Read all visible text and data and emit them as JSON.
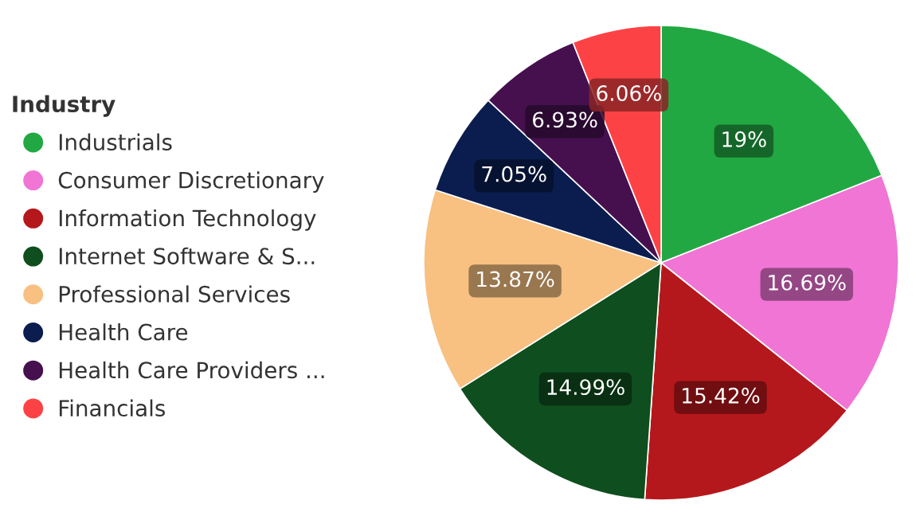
{
  "chart_data": {
    "type": "pie",
    "legend_title": "Industry",
    "legend": "left",
    "categories": [
      "Industrials",
      "Consumer Discretionary",
      "Information Technology",
      "Internet Software & S...",
      "Professional Services",
      "Health Care",
      "Health Care Providers ...",
      "Financials"
    ],
    "values": [
      19,
      16.69,
      15.42,
      14.99,
      13.87,
      7.05,
      6.93,
      6.06
    ],
    "value_labels": [
      "19%",
      "16.69%",
      "15.42%",
      "14.99%",
      "13.87%",
      "7.05%",
      "6.93%",
      "6.06%"
    ],
    "colors": [
      "#22a843",
      "#f075d4",
      "#b5181c",
      "#0f4e1e",
      "#f8c081",
      "#0b1d4f",
      "#46104f",
      "#fd4245"
    ]
  }
}
